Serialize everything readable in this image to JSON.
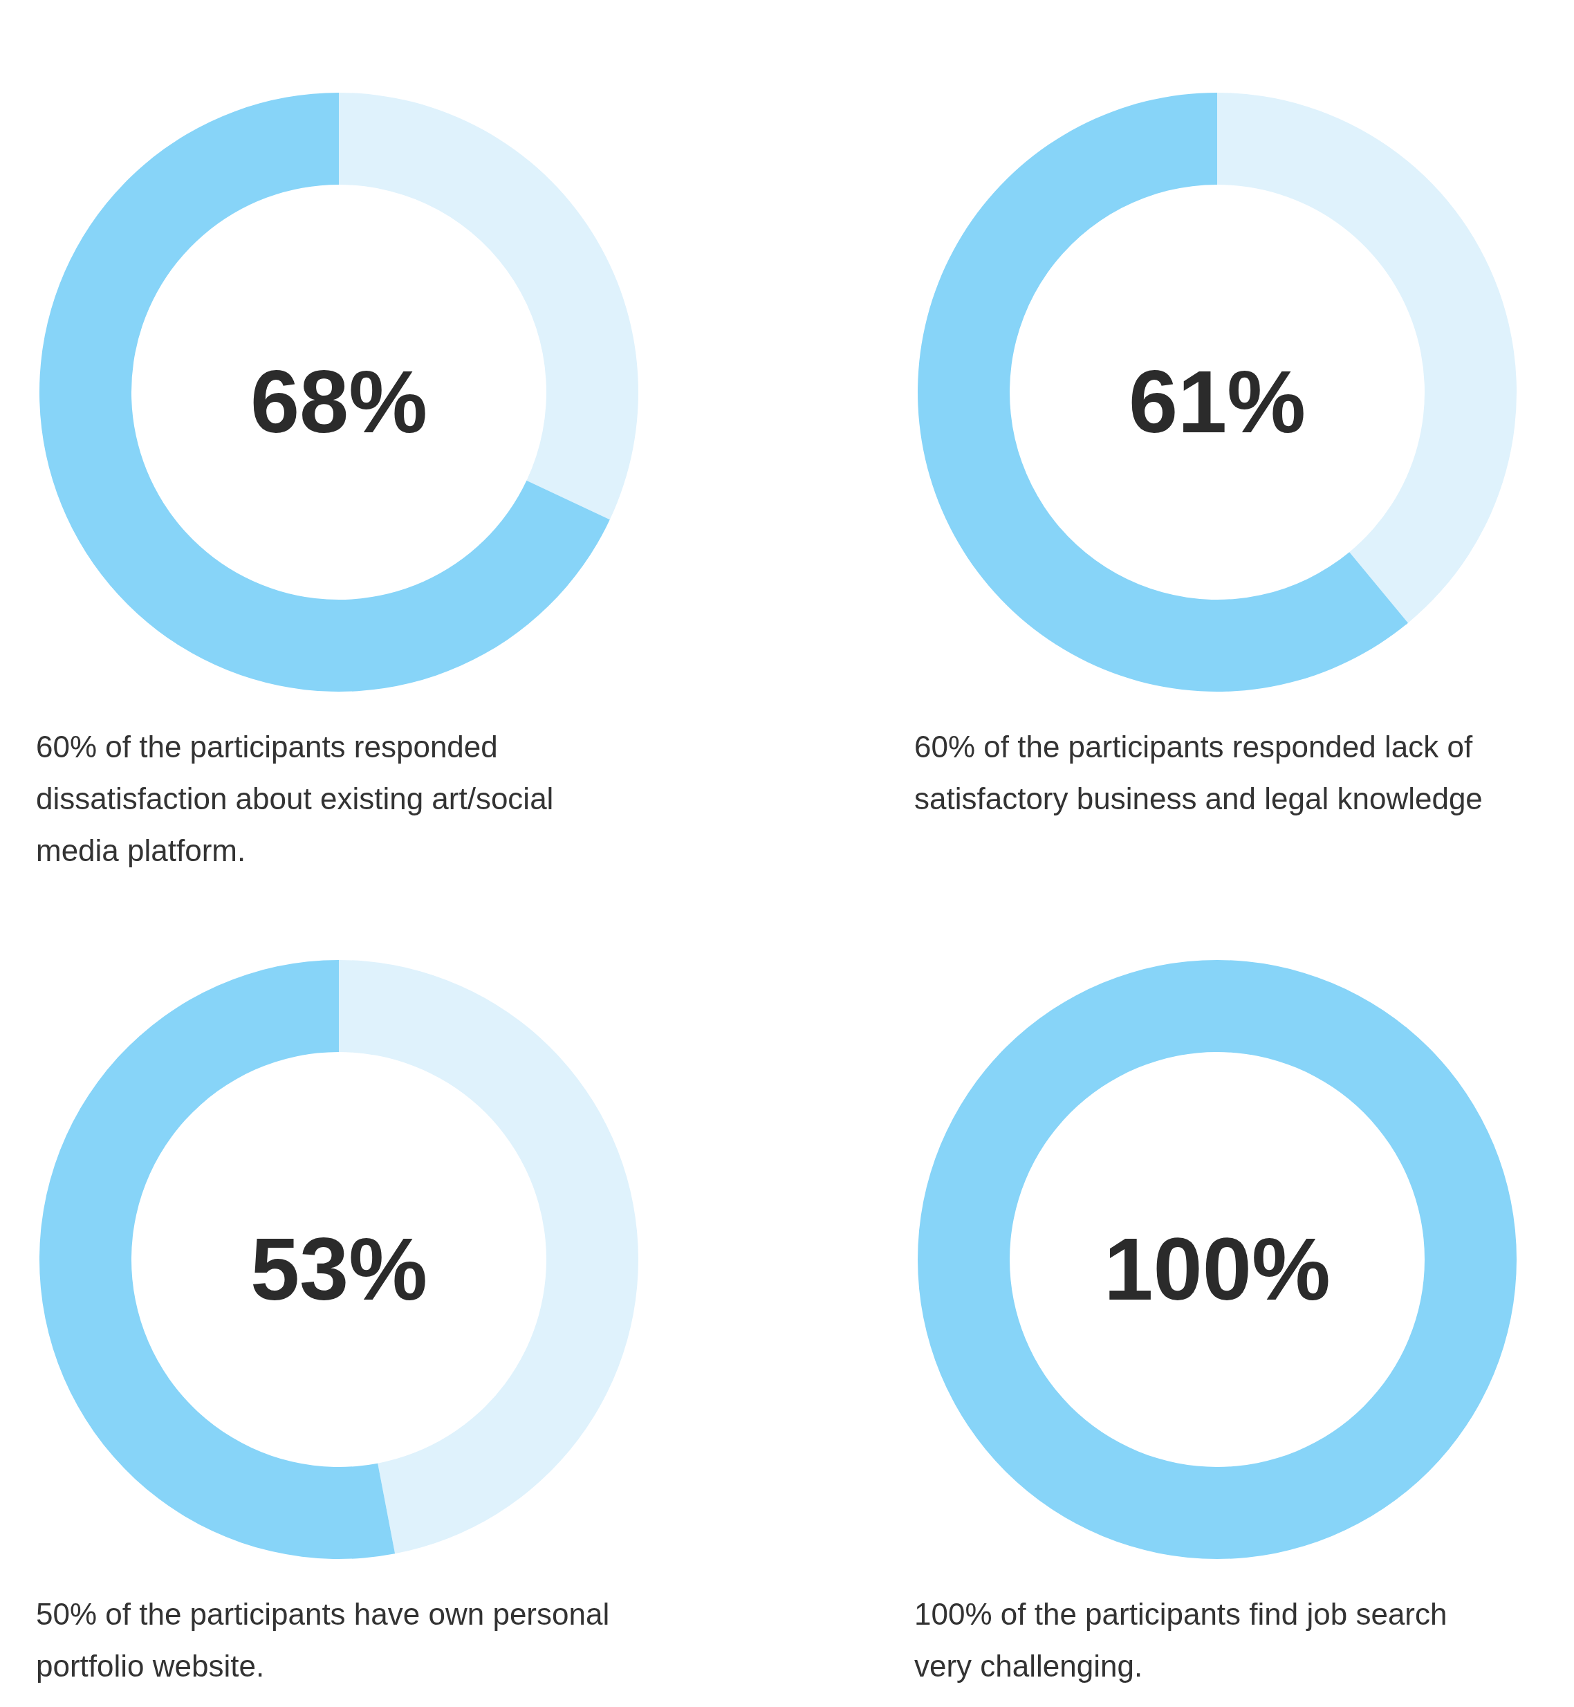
{
  "chart_data": [
    {
      "type": "donut",
      "categories": [
        null,
        null
      ],
      "values": [
        32,
        68
      ],
      "colors": [
        "#dff2fc",
        "#87d4f8"
      ],
      "annotations": [
        "68%",
        "60% of the participants responded dissatisfaction about existing art/social media platform."
      ]
    },
    {
      "type": "donut",
      "categories": [
        null,
        null
      ],
      "values": [
        39,
        61
      ],
      "colors": [
        "#dff2fc",
        "#87d4f8"
      ],
      "annotations": [
        "61%",
        "60% of the participants responded lack of satisfactory business and legal knowledge"
      ]
    },
    {
      "type": "donut",
      "categories": [
        null,
        null
      ],
      "values": [
        47,
        53
      ],
      "colors": [
        "#dff2fc",
        "#87d4f8"
      ],
      "annotations": [
        "53%",
        "50% of the participants have own personal portfolio website."
      ]
    },
    {
      "type": "donut",
      "categories": [
        null
      ],
      "values": [
        100
      ],
      "colors": [
        "#87d4f8"
      ],
      "annotations": [
        "100%",
        "100% of the participants find job search very challenging."
      ]
    }
  ]
}
